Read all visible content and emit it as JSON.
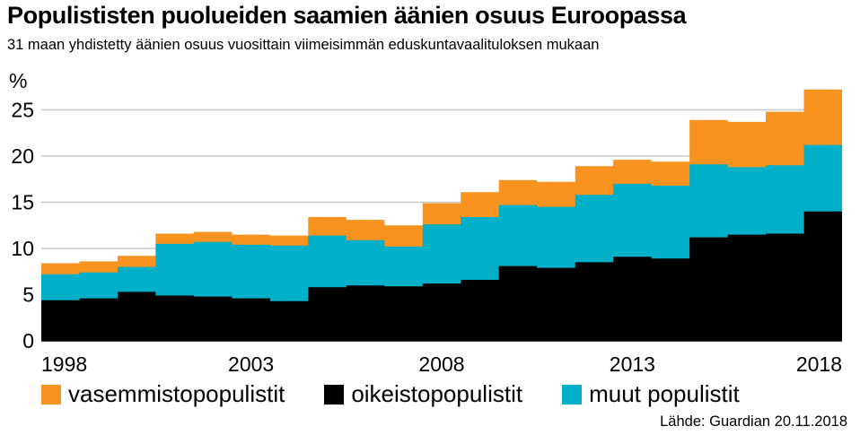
{
  "header": {
    "title": "Populististen puolueiden saamien äänien osuus Euroopassa",
    "subtitle": "31 maan yhdistetty äänien osuus vuosittain viimeisimmän eduskuntavaalituloksen mukaan"
  },
  "source": "Lähde: Guardian 20.11.2018",
  "colors": {
    "vasemmisto": "#f7931e",
    "oikeisto": "#000000",
    "muut": "#00b0c8",
    "grid": "#c8c8c8"
  },
  "chart_data": {
    "type": "area",
    "stacked": true,
    "step": true,
    "x": [
      1998,
      1999,
      2000,
      2001,
      2002,
      2003,
      2004,
      2005,
      2006,
      2007,
      2008,
      2009,
      2010,
      2011,
      2012,
      2013,
      2014,
      2015,
      2016,
      2017,
      2018
    ],
    "x_ticks": [
      "1998",
      "2003",
      "2008",
      "2013",
      "2018"
    ],
    "y_ticks": [
      "0",
      "5",
      "10",
      "15",
      "20",
      "25"
    ],
    "ylabel": "%",
    "ylim": [
      0,
      28
    ],
    "grid": true,
    "legend_position": "bottom",
    "series": [
      {
        "name": "oikeistopopulistit",
        "key": "oikeisto",
        "values": [
          4.4,
          4.6,
          5.3,
          4.9,
          4.8,
          4.6,
          4.3,
          5.8,
          6.0,
          5.9,
          6.2,
          6.6,
          8.1,
          7.9,
          8.5,
          9.1,
          8.9,
          11.2,
          11.5,
          11.6,
          14.0
        ]
      },
      {
        "name": "muut populistit",
        "key": "muut",
        "values": [
          2.8,
          2.8,
          2.7,
          5.6,
          5.9,
          5.8,
          6.0,
          5.6,
          4.9,
          4.3,
          6.4,
          6.8,
          6.6,
          6.6,
          7.3,
          7.9,
          7.9,
          7.9,
          7.3,
          7.4,
          7.2
        ]
      },
      {
        "name": "vasemmistopopulistit",
        "key": "vasemmisto",
        "values": [
          1.2,
          1.2,
          1.2,
          1.1,
          1.1,
          1.1,
          1.1,
          2.0,
          2.2,
          2.3,
          2.3,
          2.7,
          2.7,
          2.7,
          3.1,
          2.6,
          2.6,
          4.8,
          4.9,
          5.8,
          6.0
        ]
      }
    ]
  },
  "legend": [
    {
      "label": "vasemmistopopulistit",
      "key": "vasemmisto"
    },
    {
      "label": "oikeistopopulistit",
      "key": "oikeisto"
    },
    {
      "label": "muut populistit",
      "key": "muut"
    }
  ]
}
